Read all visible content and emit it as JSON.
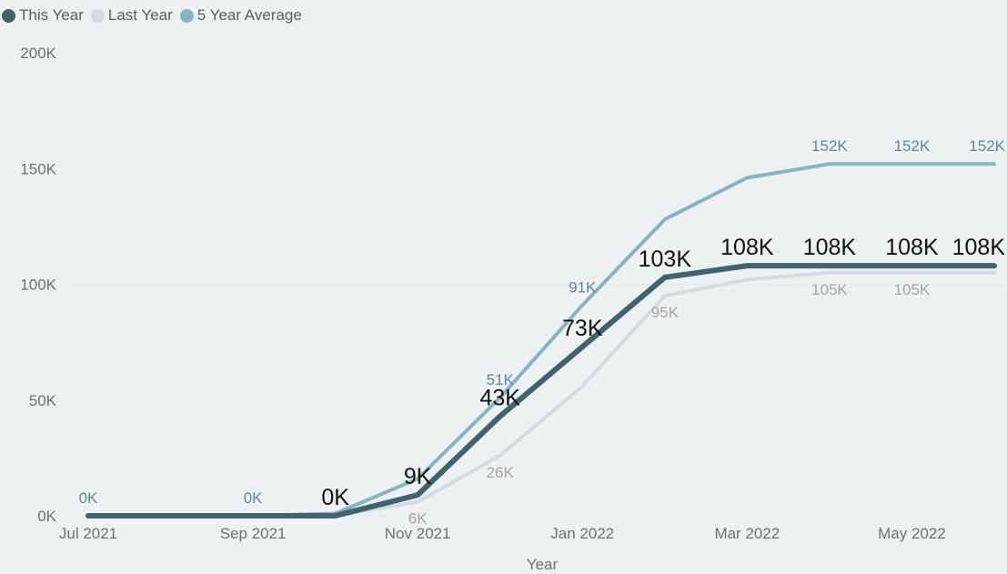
{
  "legend": {
    "items": [
      {
        "label": "This Year",
        "color": "#41626f"
      },
      {
        "label": "Last Year",
        "color": "#cfdde2"
      },
      {
        "label": "5 Year Average",
        "color": "#87b3c4"
      }
    ]
  },
  "chart_data": {
    "type": "line",
    "xlabel": "Year",
    "ylabel": "",
    "ylim": [
      0,
      200000
    ],
    "yticks": [
      0,
      50000,
      100000,
      150000,
      200000
    ],
    "ytick_labels": [
      "0K",
      "50K",
      "100K",
      "150K",
      "200K"
    ],
    "x": [
      "2021-07",
      "2021-08",
      "2021-09",
      "2021-10",
      "2021-11",
      "2021-12",
      "2022-01",
      "2022-02",
      "2022-03",
      "2022-04",
      "2022-05",
      "2022-06"
    ],
    "xtick_labels": [
      "Jul 2021",
      "",
      "Sep 2021",
      "",
      "Nov 2021",
      "",
      "Jan 2022",
      "",
      "Mar 2022",
      "",
      "May 2022",
      ""
    ],
    "grid": true,
    "legend_position": "top-left",
    "series": [
      {
        "name": "5 Year Average",
        "color": "#87b3c4",
        "values": [
          0,
          0,
          0,
          1000,
          16000,
          51000,
          91000,
          128000,
          146000,
          152000,
          152000,
          152000
        ],
        "labels": [
          "0K",
          "",
          "0K",
          "",
          "",
          "51K",
          "91K",
          "",
          "",
          "152K",
          "152K",
          "152K"
        ],
        "label_color": "#5a8a9c",
        "label_size": 17
      },
      {
        "name": "Last Year",
        "color": "#cfdde2",
        "values": [
          0,
          0,
          0,
          0,
          6000,
          26000,
          56000,
          95000,
          102000,
          105000,
          105000,
          105000
        ],
        "labels": [
          "",
          "",
          "",
          "",
          "6K",
          "26K",
          "",
          "95K",
          "",
          "105K",
          "105K",
          ""
        ],
        "label_color": "#a6a6a6",
        "label_size": 17
      },
      {
        "name": "This Year",
        "color": "#41626f",
        "values": [
          0,
          0,
          0,
          0,
          9000,
          43000,
          73000,
          103000,
          108000,
          108000,
          108000,
          108000
        ],
        "labels": [
          "",
          "",
          "",
          "0K",
          "9K",
          "43K",
          "73K",
          "103K",
          "108K",
          "108K",
          "108K",
          "108K"
        ],
        "label_color": "#111111",
        "label_size": 25
      }
    ]
  }
}
